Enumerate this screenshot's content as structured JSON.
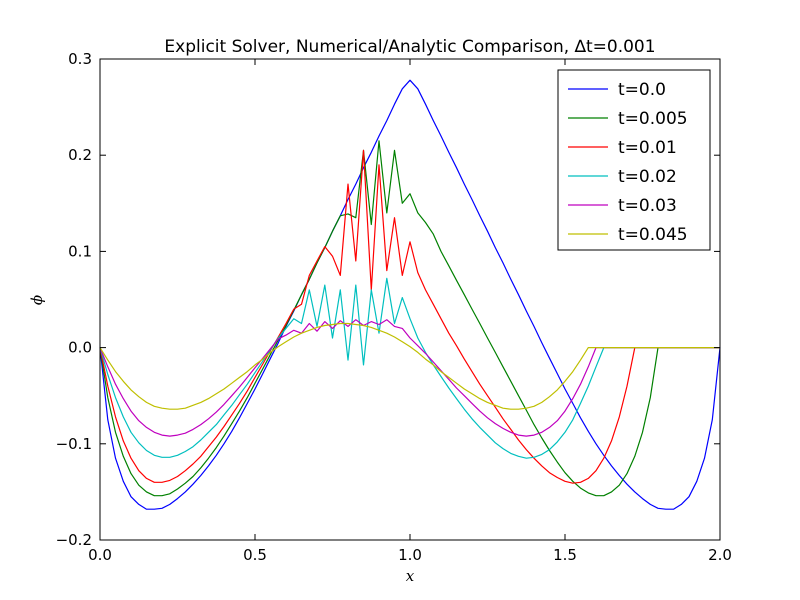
{
  "chart_data": {
    "type": "line",
    "title": "Explicit Solver, Numerical/Analytic Comparison, ∆t=0.001",
    "xlabel": "x",
    "ylabel": "ϕ",
    "xlim": [
      0.0,
      2.0
    ],
    "ylim": [
      -0.2,
      0.3
    ],
    "xticks": [
      0.0,
      0.5,
      1.0,
      1.5,
      2.0
    ],
    "xtick_labels": [
      "0.0",
      "0.5",
      "1.0",
      "1.5",
      "2.0"
    ],
    "yticks": [
      -0.2,
      -0.1,
      0.0,
      0.1,
      0.2,
      0.3
    ],
    "ytick_labels": [
      "−0.2",
      "−0.1",
      "0.0",
      "0.1",
      "0.2",
      "0.3"
    ],
    "grid": false,
    "legend_position": "top-right",
    "series": [
      {
        "name": "t=0.0",
        "color": "#0000ff",
        "x": [
          0.0,
          0.025,
          0.05,
          0.075,
          0.1,
          0.125,
          0.15,
          0.175,
          0.2,
          0.225,
          0.25,
          0.275,
          0.3,
          0.325,
          0.35,
          0.375,
          0.4,
          0.425,
          0.45,
          0.475,
          0.5,
          0.525,
          0.55,
          0.575,
          0.6,
          0.625,
          0.65,
          0.675,
          0.7,
          0.725,
          0.75,
          0.775,
          0.8,
          0.825,
          0.85,
          0.875,
          0.9,
          0.925,
          0.95,
          0.975,
          1.0,
          1.025,
          1.05,
          1.075,
          1.1,
          1.125,
          1.15,
          1.175,
          1.2,
          1.225,
          1.25,
          1.275,
          1.3,
          1.325,
          1.35,
          1.375,
          1.4,
          1.425,
          1.45,
          1.475,
          1.5,
          1.525,
          1.55,
          1.575,
          1.6,
          1.625,
          1.65,
          1.675,
          1.7,
          1.725,
          1.75,
          1.775,
          1.8,
          1.825,
          1.85,
          1.875,
          1.9,
          1.925,
          1.95,
          1.975,
          2.0
        ],
        "y": [
          0.0,
          -0.075,
          -0.115,
          -0.139,
          -0.155,
          -0.163,
          -0.168,
          -0.168,
          -0.167,
          -0.163,
          -0.157,
          -0.15,
          -0.142,
          -0.133,
          -0.123,
          -0.112,
          -0.1,
          -0.087,
          -0.073,
          -0.058,
          -0.043,
          -0.027,
          -0.011,
          0.005,
          0.022,
          0.038,
          0.055,
          0.071,
          0.088,
          0.104,
          0.121,
          0.137,
          0.154,
          0.17,
          0.187,
          0.203,
          0.22,
          0.236,
          0.253,
          0.269,
          0.278,
          0.269,
          0.253,
          0.236,
          0.22,
          0.203,
          0.187,
          0.17,
          0.154,
          0.137,
          0.121,
          0.104,
          0.088,
          0.071,
          0.055,
          0.038,
          0.022,
          0.005,
          -0.011,
          -0.027,
          -0.043,
          -0.058,
          -0.073,
          -0.087,
          -0.1,
          -0.112,
          -0.123,
          -0.133,
          -0.142,
          -0.15,
          -0.157,
          -0.163,
          -0.167,
          -0.168,
          -0.168,
          -0.163,
          -0.155,
          -0.139,
          -0.115,
          -0.075,
          0.0
        ]
      },
      {
        "name": "t=0.005",
        "color": "#008000",
        "x": [
          0.0,
          0.025,
          0.05,
          0.075,
          0.1,
          0.125,
          0.15,
          0.175,
          0.2,
          0.225,
          0.25,
          0.275,
          0.3,
          0.325,
          0.35,
          0.375,
          0.4,
          0.425,
          0.45,
          0.475,
          0.5,
          0.525,
          0.55,
          0.575,
          0.6,
          0.625,
          0.65,
          0.675,
          0.7,
          0.725,
          0.75,
          0.775,
          0.8,
          0.825,
          0.85,
          0.875,
          0.9,
          0.925,
          0.95,
          0.975,
          1.0,
          1.025,
          1.05,
          1.075,
          1.1,
          1.125,
          1.15,
          1.175,
          1.2,
          1.225,
          1.25,
          1.275,
          1.3,
          1.325,
          1.35,
          1.375,
          1.4,
          1.425,
          1.45,
          1.475,
          1.5,
          1.525,
          1.55,
          1.575,
          1.6,
          1.625,
          1.65,
          1.675,
          1.7,
          1.725,
          1.75,
          1.775,
          1.8,
          1.825,
          1.85,
          1.875,
          1.9,
          1.925,
          1.95,
          1.975,
          2.0
        ],
        "y": [
          0.0,
          -0.052,
          -0.088,
          -0.113,
          -0.131,
          -0.143,
          -0.15,
          -0.154,
          -0.154,
          -0.152,
          -0.147,
          -0.141,
          -0.134,
          -0.125,
          -0.115,
          -0.104,
          -0.092,
          -0.079,
          -0.066,
          -0.052,
          -0.037,
          -0.022,
          -0.007,
          0.008,
          0.023,
          0.039,
          0.055,
          0.071,
          0.088,
          0.104,
          0.121,
          0.137,
          0.139,
          0.135,
          0.205,
          0.128,
          0.215,
          0.14,
          0.205,
          0.15,
          0.16,
          0.14,
          0.13,
          0.118,
          0.1,
          0.085,
          0.07,
          0.055,
          0.04,
          0.025,
          0.01,
          -0.005,
          -0.02,
          -0.035,
          -0.05,
          -0.065,
          -0.08,
          -0.094,
          -0.107,
          -0.119,
          -0.13,
          -0.139,
          -0.146,
          -0.151,
          -0.154,
          -0.154,
          -0.15,
          -0.143,
          -0.131,
          -0.113,
          -0.088,
          -0.052,
          0.0,
          0.0,
          0.0,
          0.0,
          0.0,
          0.0,
          0.0,
          0.0,
          0.0
        ]
      },
      {
        "name": "t=0.01",
        "color": "#ff0000",
        "x": [
          0.0,
          0.025,
          0.05,
          0.075,
          0.1,
          0.125,
          0.15,
          0.175,
          0.2,
          0.225,
          0.25,
          0.275,
          0.3,
          0.325,
          0.35,
          0.375,
          0.4,
          0.425,
          0.45,
          0.475,
          0.5,
          0.525,
          0.55,
          0.575,
          0.6,
          0.625,
          0.65,
          0.675,
          0.7,
          0.725,
          0.75,
          0.775,
          0.8,
          0.825,
          0.85,
          0.875,
          0.9,
          0.925,
          0.95,
          0.975,
          1.0,
          1.025,
          1.05,
          1.075,
          1.1,
          1.125,
          1.15,
          1.175,
          1.2,
          1.225,
          1.25,
          1.275,
          1.3,
          1.325,
          1.35,
          1.375,
          1.4,
          1.425,
          1.45,
          1.475,
          1.5,
          1.525,
          1.55,
          1.575,
          1.6,
          1.625,
          1.65,
          1.675,
          1.7,
          1.725,
          1.75,
          1.775,
          1.8,
          1.825,
          1.85,
          1.875,
          1.9,
          1.925,
          1.95,
          1.975,
          2.0
        ],
        "y": [
          0.0,
          -0.04,
          -0.072,
          -0.097,
          -0.115,
          -0.128,
          -0.136,
          -0.14,
          -0.14,
          -0.138,
          -0.134,
          -0.128,
          -0.121,
          -0.113,
          -0.103,
          -0.093,
          -0.082,
          -0.07,
          -0.058,
          -0.045,
          -0.031,
          -0.017,
          -0.003,
          0.011,
          0.025,
          0.04,
          0.045,
          0.075,
          0.09,
          0.105,
          0.095,
          0.075,
          0.17,
          0.09,
          0.205,
          0.06,
          0.19,
          0.08,
          0.135,
          0.075,
          0.11,
          0.078,
          0.06,
          0.045,
          0.03,
          0.015,
          0.002,
          -0.012,
          -0.025,
          -0.038,
          -0.05,
          -0.062,
          -0.074,
          -0.085,
          -0.096,
          -0.106,
          -0.115,
          -0.123,
          -0.13,
          -0.135,
          -0.139,
          -0.141,
          -0.14,
          -0.136,
          -0.128,
          -0.115,
          -0.097,
          -0.072,
          -0.04,
          0.0,
          0.0,
          0.0,
          0.0,
          0.0,
          0.0,
          0.0,
          0.0,
          0.0,
          0.0,
          0.0,
          0.0
        ]
      },
      {
        "name": "t=0.02",
        "color": "#00bfbf",
        "x": [
          0.0,
          0.025,
          0.05,
          0.075,
          0.1,
          0.125,
          0.15,
          0.175,
          0.2,
          0.225,
          0.25,
          0.275,
          0.3,
          0.325,
          0.35,
          0.375,
          0.4,
          0.425,
          0.45,
          0.475,
          0.5,
          0.525,
          0.55,
          0.575,
          0.6,
          0.625,
          0.65,
          0.675,
          0.7,
          0.725,
          0.75,
          0.775,
          0.8,
          0.825,
          0.85,
          0.875,
          0.9,
          0.925,
          0.95,
          0.975,
          1.0,
          1.025,
          1.05,
          1.075,
          1.1,
          1.125,
          1.15,
          1.175,
          1.2,
          1.225,
          1.25,
          1.275,
          1.3,
          1.325,
          1.35,
          1.375,
          1.4,
          1.425,
          1.45,
          1.475,
          1.5,
          1.525,
          1.55,
          1.575,
          1.6,
          1.625,
          1.65,
          1.675,
          1.7,
          1.725,
          1.75,
          1.775,
          1.8,
          1.825,
          1.85,
          1.875,
          1.9,
          1.925,
          1.95,
          1.975,
          2.0
        ],
        "y": [
          0.0,
          -0.028,
          -0.052,
          -0.072,
          -0.088,
          -0.099,
          -0.107,
          -0.112,
          -0.114,
          -0.114,
          -0.112,
          -0.108,
          -0.103,
          -0.096,
          -0.088,
          -0.08,
          -0.07,
          -0.06,
          -0.049,
          -0.038,
          -0.026,
          -0.014,
          -0.002,
          0.01,
          0.02,
          0.03,
          0.025,
          0.06,
          0.022,
          0.065,
          0.01,
          0.06,
          -0.013,
          0.065,
          -0.018,
          0.06,
          0.015,
          0.072,
          0.025,
          0.052,
          0.03,
          0.01,
          -0.005,
          -0.018,
          -0.03,
          -0.042,
          -0.053,
          -0.064,
          -0.074,
          -0.083,
          -0.091,
          -0.099,
          -0.105,
          -0.11,
          -0.113,
          -0.115,
          -0.114,
          -0.111,
          -0.106,
          -0.098,
          -0.088,
          -0.075,
          -0.058,
          -0.04,
          -0.02,
          0.0,
          0.0,
          0.0,
          0.0,
          0.0,
          0.0,
          0.0,
          0.0,
          0.0,
          0.0,
          0.0,
          0.0,
          0.0,
          0.0,
          0.0,
          0.0
        ]
      },
      {
        "name": "t=0.03",
        "color": "#bf00bf",
        "x": [
          0.0,
          0.025,
          0.05,
          0.075,
          0.1,
          0.125,
          0.15,
          0.175,
          0.2,
          0.225,
          0.25,
          0.275,
          0.3,
          0.325,
          0.35,
          0.375,
          0.4,
          0.425,
          0.45,
          0.475,
          0.5,
          0.525,
          0.55,
          0.575,
          0.6,
          0.625,
          0.65,
          0.675,
          0.7,
          0.725,
          0.75,
          0.775,
          0.8,
          0.825,
          0.85,
          0.875,
          0.9,
          0.925,
          0.95,
          0.975,
          1.0,
          1.025,
          1.05,
          1.075,
          1.1,
          1.125,
          1.15,
          1.175,
          1.2,
          1.225,
          1.25,
          1.275,
          1.3,
          1.325,
          1.35,
          1.375,
          1.4,
          1.425,
          1.45,
          1.475,
          1.5,
          1.525,
          1.55,
          1.575,
          1.6,
          1.625,
          1.65,
          1.675,
          1.7,
          1.725,
          1.75,
          1.775,
          1.8,
          1.825,
          1.85,
          1.875,
          1.9,
          1.925,
          1.95,
          1.975,
          2.0
        ],
        "y": [
          0.0,
          -0.02,
          -0.038,
          -0.053,
          -0.066,
          -0.076,
          -0.083,
          -0.088,
          -0.091,
          -0.092,
          -0.091,
          -0.089,
          -0.085,
          -0.08,
          -0.074,
          -0.067,
          -0.059,
          -0.05,
          -0.041,
          -0.031,
          -0.021,
          -0.011,
          -0.001,
          0.009,
          0.013,
          0.018,
          0.015,
          0.025,
          0.017,
          0.027,
          0.02,
          0.028,
          0.022,
          0.029,
          0.023,
          0.027,
          0.024,
          0.029,
          0.022,
          0.02,
          0.01,
          0.002,
          -0.006,
          -0.015,
          -0.024,
          -0.033,
          -0.042,
          -0.05,
          -0.058,
          -0.066,
          -0.073,
          -0.079,
          -0.084,
          -0.088,
          -0.091,
          -0.092,
          -0.091,
          -0.088,
          -0.083,
          -0.076,
          -0.066,
          -0.053,
          -0.038,
          -0.02,
          0.0,
          0.0,
          0.0,
          0.0,
          0.0,
          0.0,
          0.0,
          0.0,
          0.0,
          0.0,
          0.0,
          0.0,
          0.0,
          0.0,
          0.0,
          0.0,
          0.0
        ]
      },
      {
        "name": "t=0.045",
        "color": "#bfbf00",
        "x": [
          0.0,
          0.025,
          0.05,
          0.075,
          0.1,
          0.125,
          0.15,
          0.175,
          0.2,
          0.225,
          0.25,
          0.275,
          0.3,
          0.325,
          0.35,
          0.375,
          0.4,
          0.425,
          0.45,
          0.475,
          0.5,
          0.525,
          0.55,
          0.575,
          0.6,
          0.625,
          0.65,
          0.675,
          0.7,
          0.725,
          0.75,
          0.775,
          0.8,
          0.825,
          0.85,
          0.875,
          0.9,
          0.925,
          0.95,
          0.975,
          1.0,
          1.025,
          1.05,
          1.075,
          1.1,
          1.125,
          1.15,
          1.175,
          1.2,
          1.225,
          1.25,
          1.275,
          1.3,
          1.325,
          1.35,
          1.375,
          1.4,
          1.425,
          1.45,
          1.475,
          1.5,
          1.525,
          1.55,
          1.575,
          1.6,
          1.625,
          1.65,
          1.675,
          1.7,
          1.725,
          1.75,
          1.775,
          1.8,
          1.825,
          1.85,
          1.875,
          1.9,
          1.925,
          1.95,
          1.975,
          2.0
        ],
        "y": [
          0.0,
          -0.013,
          -0.025,
          -0.035,
          -0.044,
          -0.051,
          -0.057,
          -0.061,
          -0.063,
          -0.064,
          -0.064,
          -0.063,
          -0.06,
          -0.057,
          -0.053,
          -0.048,
          -0.043,
          -0.037,
          -0.031,
          -0.025,
          -0.018,
          -0.012,
          -0.005,
          0.001,
          0.006,
          0.011,
          0.015,
          0.018,
          0.021,
          0.023,
          0.024,
          0.025,
          0.025,
          0.024,
          0.023,
          0.021,
          0.018,
          0.015,
          0.011,
          0.006,
          0.001,
          -0.005,
          -0.012,
          -0.018,
          -0.025,
          -0.031,
          -0.037,
          -0.043,
          -0.048,
          -0.053,
          -0.057,
          -0.06,
          -0.063,
          -0.064,
          -0.064,
          -0.063,
          -0.061,
          -0.057,
          -0.051,
          -0.044,
          -0.035,
          -0.025,
          -0.013,
          0.0,
          0.0,
          0.0,
          0.0,
          0.0,
          0.0,
          0.0,
          0.0,
          0.0,
          0.0,
          0.0,
          0.0,
          0.0,
          0.0,
          0.0,
          0.0,
          0.0,
          0.0
        ]
      }
    ]
  }
}
